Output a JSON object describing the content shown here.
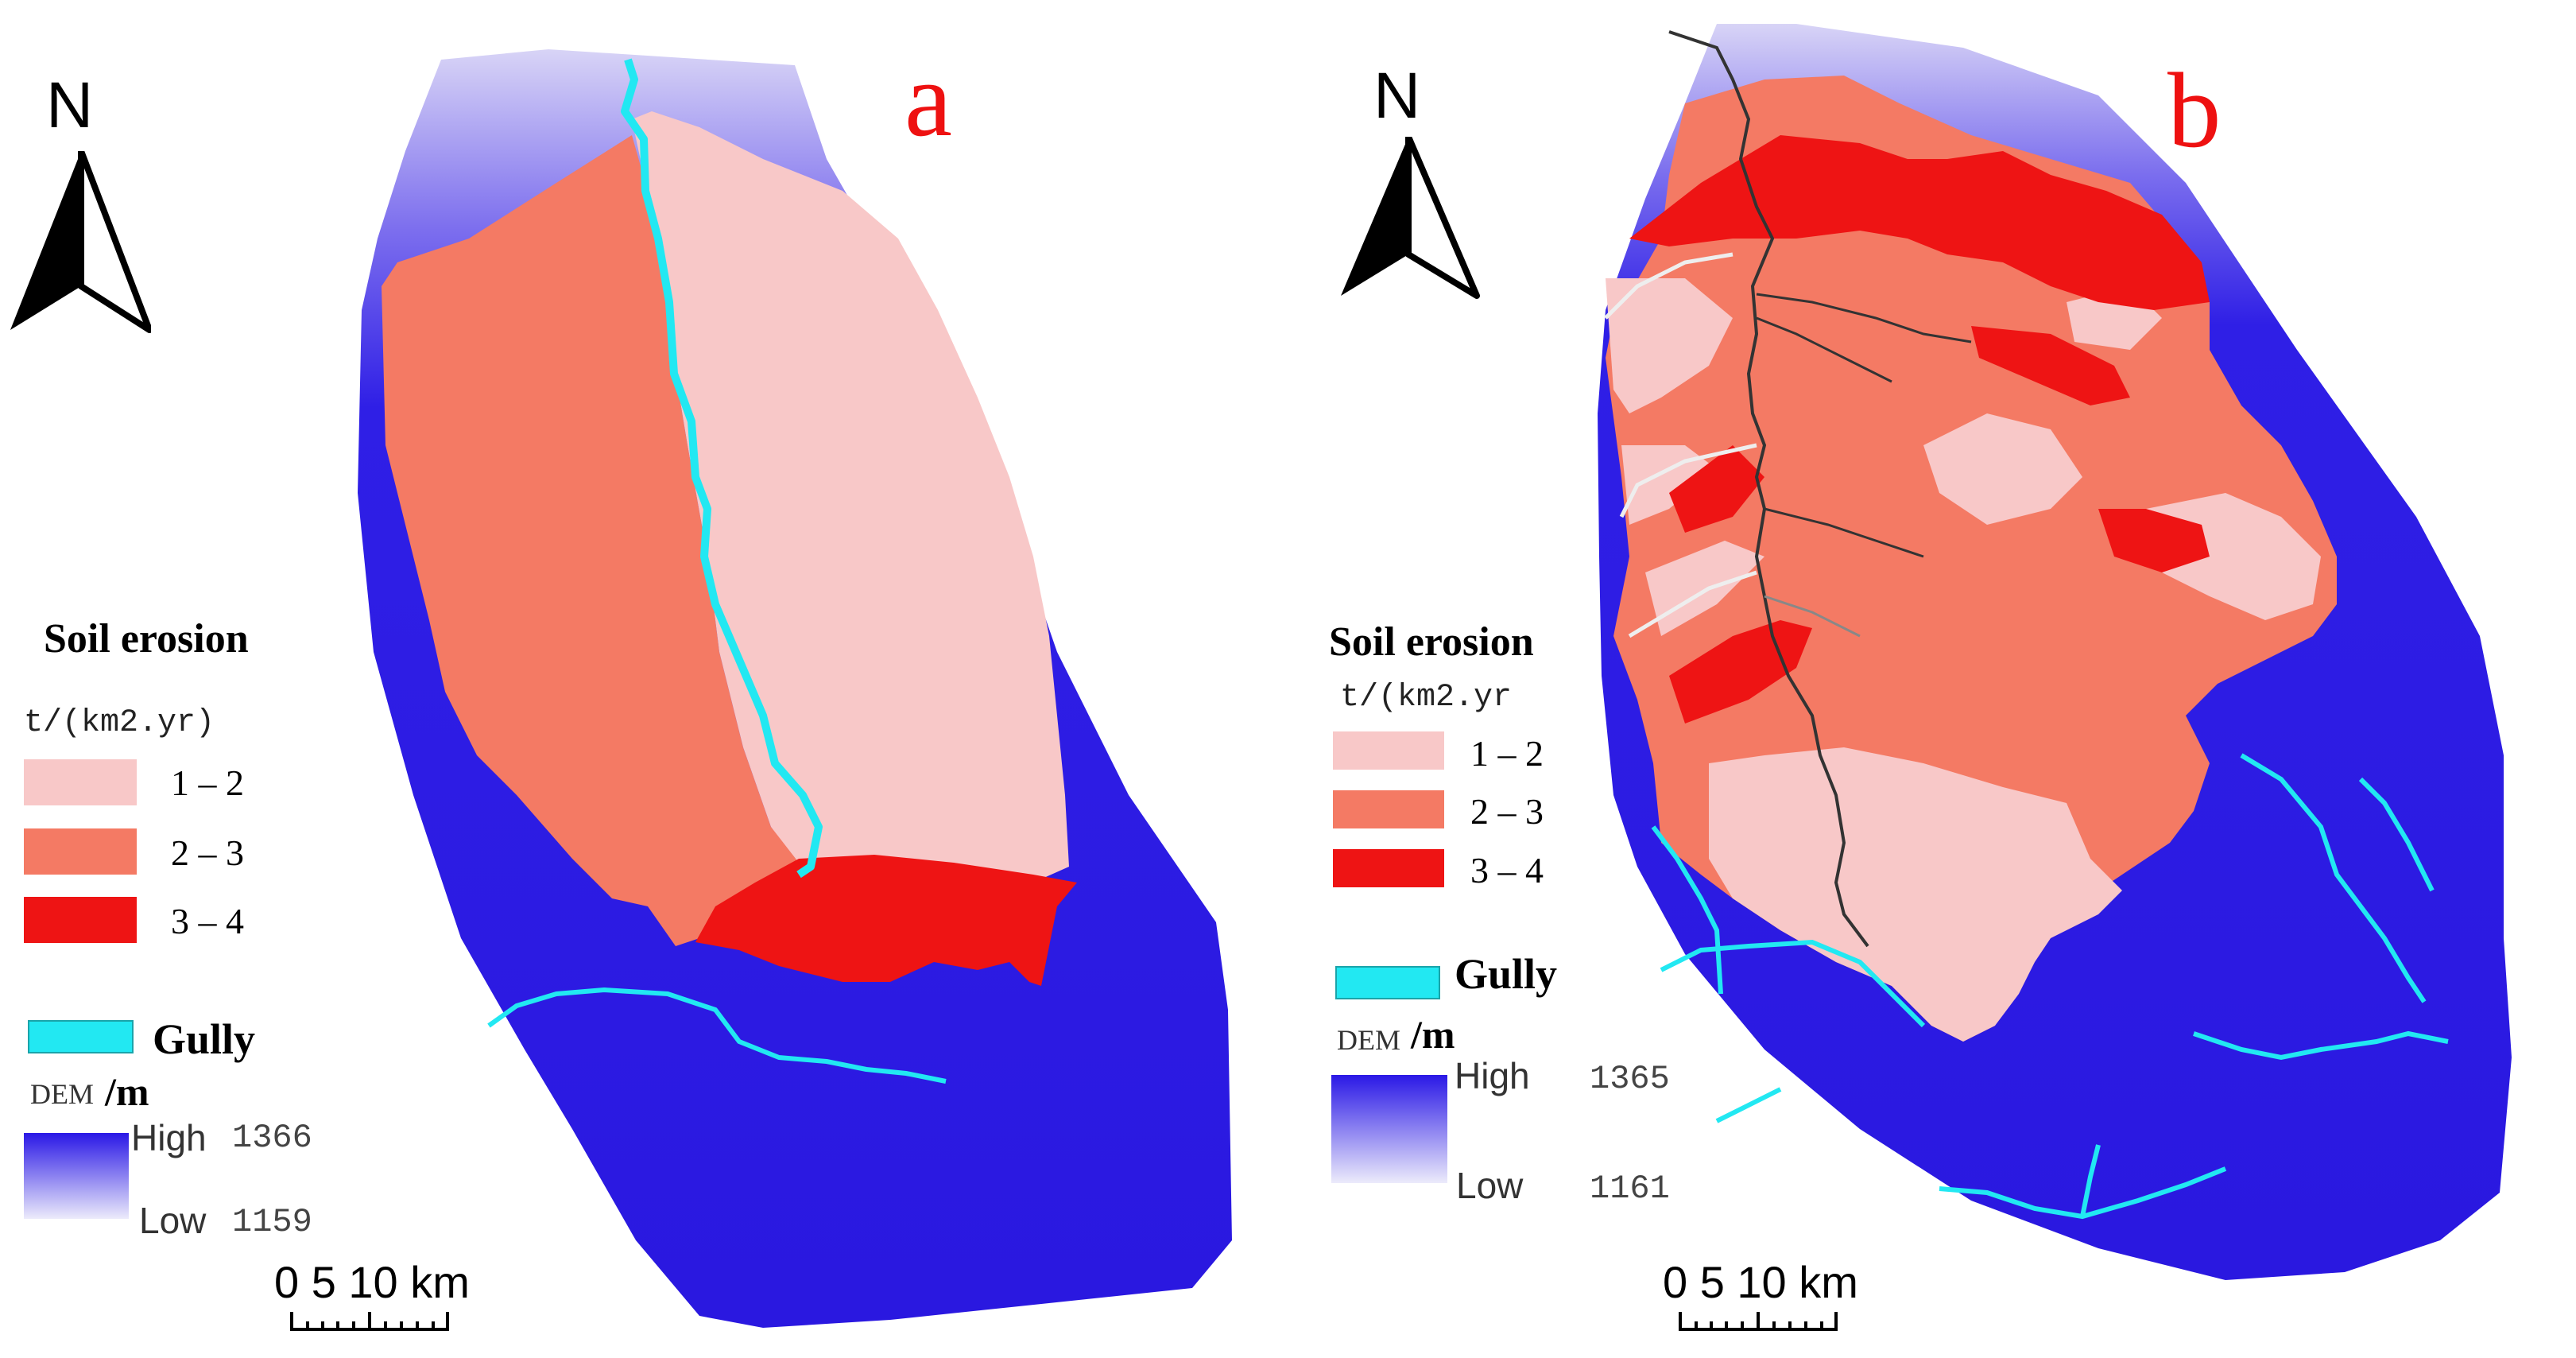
{
  "panels": [
    {
      "id": "a",
      "label": "a",
      "north_label": "N",
      "legend": {
        "title": "Soil erosion",
        "unit": "t/(km2.yr)",
        "classes": [
          {
            "label": "1 – 2",
            "color": "#f8c8c8"
          },
          {
            "label": "2 – 3",
            "color": "#f47a64"
          },
          {
            "label": "3 – 4",
            "color": "#ee1414"
          }
        ],
        "gully_label": "Gully",
        "gully_color": "#22e8f2",
        "dem_label": "DEM",
        "dem_unit": "/m",
        "dem_high_label": "High",
        "dem_high_value": "1366",
        "dem_low_label": "Low",
        "dem_low_value": "1159"
      },
      "scale": {
        "ticks": "0  5 10 km"
      }
    },
    {
      "id": "b",
      "label": "b",
      "north_label": "N",
      "legend": {
        "title": "Soil erosion",
        "unit": "t/(km2.yr",
        "classes": [
          {
            "label": "1 – 2",
            "color": "#f8c8c8"
          },
          {
            "label": "2 – 3",
            "color": "#f47a64"
          },
          {
            "label": "3 – 4",
            "color": "#ee1414"
          }
        ],
        "gully_label": "Gully",
        "gully_color": "#22e8f2",
        "dem_label": "DEM",
        "dem_unit": "/m",
        "dem_high_label": "High",
        "dem_high_value": "1365",
        "dem_low_label": "Low",
        "dem_low_value": "1161"
      },
      "scale": {
        "ticks": "0  5 10 km"
      }
    }
  ],
  "colors": {
    "dem_high": "#2a18e6",
    "dem_low": "#e8e6fb",
    "erosion_low": "#f8c8c8",
    "erosion_mid": "#f47a64",
    "erosion_high": "#ee1414",
    "gully": "#22e8f2",
    "stream_b": "#333333"
  }
}
